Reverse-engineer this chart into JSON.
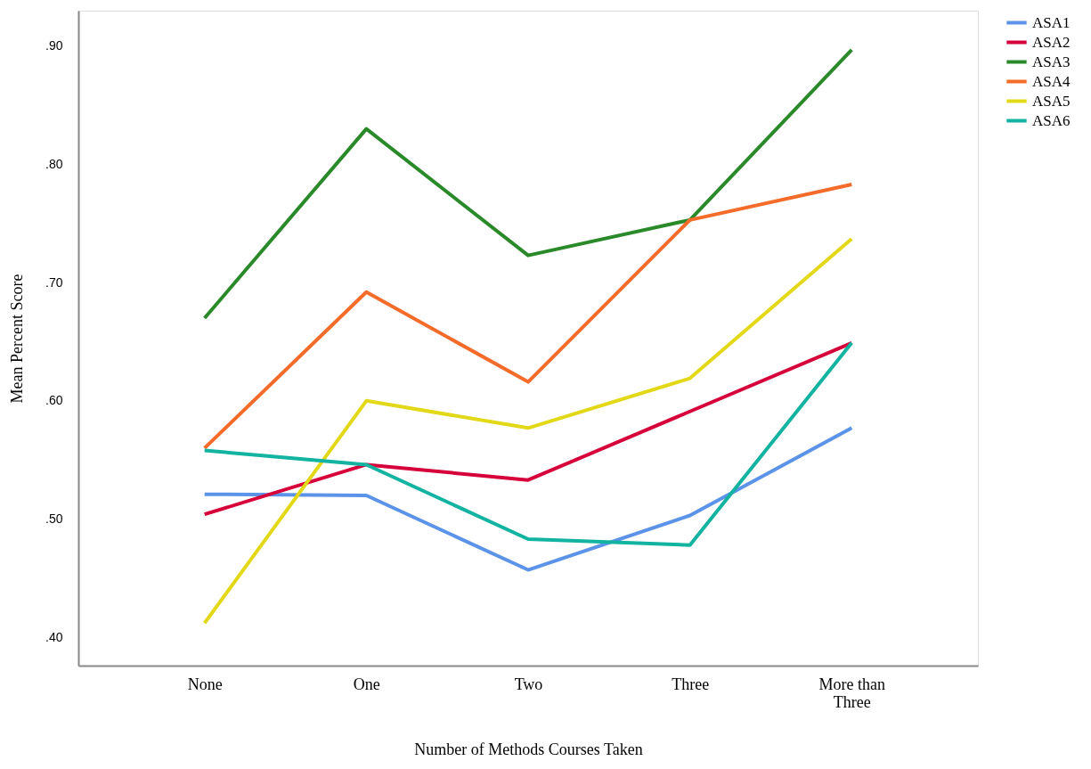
{
  "chart_data": {
    "type": "line",
    "xlabel": "Number of Methods Courses Taken",
    "ylabel": "Mean Percent Score",
    "categories": [
      "None",
      "One",
      "Two",
      "Three",
      "More than Three"
    ],
    "series": [
      {
        "name": "ASA1",
        "color": "#5b93e8",
        "values": [
          0.521,
          0.52,
          0.457,
          0.503,
          0.577
        ]
      },
      {
        "name": "ASA2",
        "color": "#d6003a",
        "values": [
          0.504,
          0.546,
          0.533,
          0.591,
          0.649
        ]
      },
      {
        "name": "ASA3",
        "color": "#2a8a29",
        "values": [
          0.67,
          0.83,
          0.723,
          0.753,
          0.897
        ]
      },
      {
        "name": "ASA4",
        "color": "#f46b2a",
        "values": [
          0.56,
          0.692,
          0.616,
          0.753,
          0.783
        ]
      },
      {
        "name": "ASA5",
        "color": "#e3d818",
        "values": [
          0.412,
          0.6,
          0.577,
          0.619,
          0.737
        ]
      },
      {
        "name": "ASA6",
        "color": "#12b3a0",
        "values": [
          0.558,
          0.546,
          0.483,
          0.478,
          0.649
        ]
      }
    ],
    "ylim": [
      0.376,
      0.93
    ],
    "yticks": [
      {
        "value": 0.4,
        "label": ".40"
      },
      {
        "value": 0.5,
        "label": ".50"
      },
      {
        "value": 0.6,
        "label": ".60"
      },
      {
        "value": 0.7,
        "label": ".70"
      },
      {
        "value": 0.8,
        "label": ".80"
      },
      {
        "value": 0.9,
        "label": ".90"
      }
    ],
    "grid": false,
    "legend": "top right",
    "marker": "none",
    "line_style": "solid"
  }
}
